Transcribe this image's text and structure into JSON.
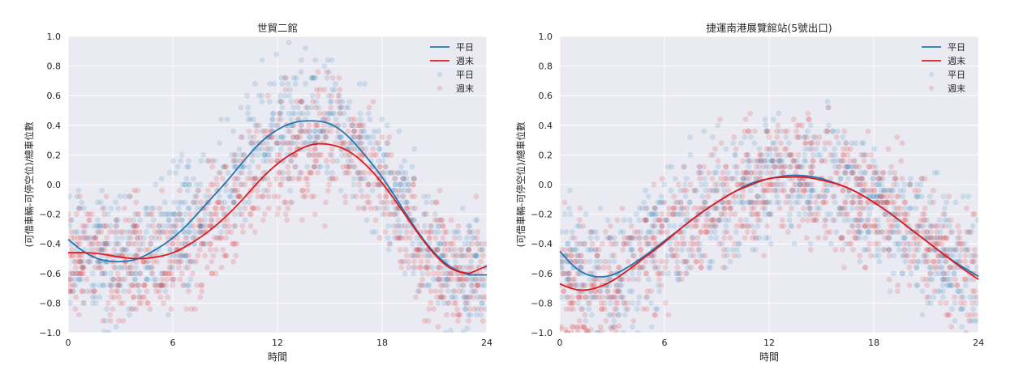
{
  "chart_data": [
    {
      "type": "scatter+line",
      "title": "世貿二館",
      "xlabel": "時間",
      "ylabel": "(可借車輛-可停空位)/總車位數",
      "xlim": [
        0,
        24
      ],
      "ylim": [
        -1.0,
        1.0
      ],
      "xticks": [
        "0",
        "6",
        "12",
        "18",
        "24"
      ],
      "yticks": [
        "−1.0",
        "−0.8",
        "−0.6",
        "−0.4",
        "−0.2",
        "0.0",
        "0.2",
        "0.4",
        "0.6",
        "0.8",
        "1.0"
      ],
      "grid": true,
      "legend_position": "top-right",
      "series": [
        {
          "name": "平日",
          "kind": "line",
          "color": "#1f77b4",
          "x": [
            0,
            1,
            2,
            3,
            4,
            5,
            6,
            7,
            8,
            9,
            10,
            11,
            12,
            13,
            14,
            15,
            16,
            17,
            18,
            19,
            20,
            21,
            22,
            23,
            24
          ],
          "y": [
            -0.37,
            -0.46,
            -0.51,
            -0.52,
            -0.5,
            -0.44,
            -0.36,
            -0.25,
            -0.12,
            0.01,
            0.15,
            0.28,
            0.37,
            0.42,
            0.43,
            0.41,
            0.33,
            0.2,
            0.05,
            -0.13,
            -0.31,
            -0.46,
            -0.56,
            -0.61,
            -0.61
          ]
        },
        {
          "name": "週末",
          "kind": "line",
          "color": "#e0191c",
          "x": [
            0,
            1,
            2,
            3,
            4,
            5,
            6,
            7,
            8,
            9,
            10,
            11,
            12,
            13,
            14,
            15,
            16,
            17,
            18,
            19,
            20,
            21,
            22,
            23,
            24
          ],
          "y": [
            -0.46,
            -0.46,
            -0.47,
            -0.49,
            -0.5,
            -0.49,
            -0.46,
            -0.4,
            -0.32,
            -0.22,
            -0.1,
            0.03,
            0.14,
            0.22,
            0.27,
            0.27,
            0.23,
            0.14,
            0.01,
            -0.15,
            -0.32,
            -0.47,
            -0.57,
            -0.6,
            -0.55
          ]
        },
        {
          "name": "平日",
          "kind": "scatter",
          "color": "#1f77b4",
          "alpha": 0.15
        },
        {
          "name": "週末",
          "kind": "scatter",
          "color": "#e0191c",
          "alpha": 0.15
        }
      ]
    },
    {
      "type": "scatter+line",
      "title": "捷運南港展覽館站(5號出口)",
      "xlabel": "時間",
      "ylabel": "(可借車輛-可停空位)/總車位數",
      "xlim": [
        0,
        24
      ],
      "ylim": [
        -1.0,
        1.0
      ],
      "xticks": [
        "0",
        "6",
        "12",
        "18",
        "24"
      ],
      "yticks": [
        "−1.0",
        "−0.8",
        "−0.6",
        "−0.4",
        "−0.2",
        "0.0",
        "0.2",
        "0.4",
        "0.6",
        "0.8",
        "1.0"
      ],
      "grid": true,
      "legend_position": "top-right",
      "series": [
        {
          "name": "平日",
          "kind": "line",
          "color": "#1f77b4",
          "x": [
            0,
            1,
            2,
            3,
            4,
            5,
            6,
            7,
            8,
            9,
            10,
            11,
            12,
            13,
            14,
            15,
            16,
            17,
            18,
            19,
            20,
            21,
            22,
            23,
            24
          ],
          "y": [
            -0.45,
            -0.57,
            -0.62,
            -0.61,
            -0.55,
            -0.47,
            -0.38,
            -0.29,
            -0.2,
            -0.12,
            -0.05,
            0.01,
            0.04,
            0.06,
            0.06,
            0.04,
            0.0,
            -0.05,
            -0.12,
            -0.2,
            -0.29,
            -0.38,
            -0.47,
            -0.55,
            -0.62
          ]
        },
        {
          "name": "週末",
          "kind": "line",
          "color": "#e0191c",
          "x": [
            0,
            1,
            2,
            3,
            4,
            5,
            6,
            7,
            8,
            9,
            10,
            11,
            12,
            13,
            14,
            15,
            16,
            17,
            18,
            19,
            20,
            21,
            22,
            23,
            24
          ],
          "y": [
            -0.67,
            -0.71,
            -0.7,
            -0.65,
            -0.57,
            -0.48,
            -0.39,
            -0.29,
            -0.2,
            -0.12,
            -0.05,
            0.0,
            0.04,
            0.05,
            0.05,
            0.03,
            0.0,
            -0.05,
            -0.12,
            -0.2,
            -0.29,
            -0.38,
            -0.47,
            -0.56,
            -0.64
          ]
        },
        {
          "name": "平日",
          "kind": "scatter",
          "color": "#1f77b4",
          "alpha": 0.15
        },
        {
          "name": "週末",
          "kind": "scatter",
          "color": "#e0191c",
          "alpha": 0.15
        }
      ]
    }
  ]
}
